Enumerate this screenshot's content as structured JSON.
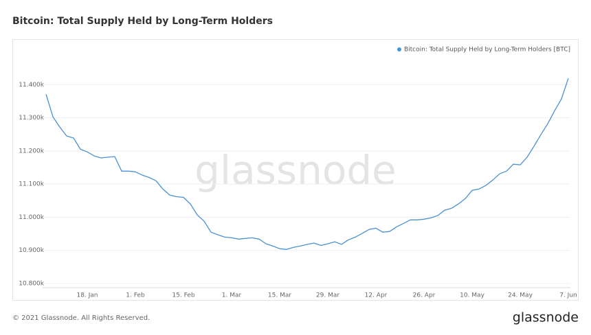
{
  "chart_data": {
    "type": "line",
    "title": "Bitcoin: Total Supply Held by Long-Term Holders",
    "watermark": "glassnode",
    "footer": "© 2021 Glassnode. All Rights Reserved.",
    "logo": "glassnode",
    "legend": "top-right",
    "grid": true,
    "categories": [
      null,
      null,
      null,
      null,
      null,
      null,
      "18. Jan",
      null,
      null,
      null,
      null,
      null,
      null,
      "1. Feb",
      null,
      null,
      null,
      null,
      null,
      null,
      "15. Feb",
      null,
      null,
      null,
      null,
      null,
      null,
      "1. Mar",
      null,
      null,
      null,
      null,
      null,
      null,
      "15. Mar",
      null,
      null,
      null,
      null,
      null,
      null,
      "29. Mar",
      null,
      null,
      null,
      null,
      null,
      null,
      "12. Apr",
      null,
      null,
      null,
      null,
      null,
      null,
      "26. Apr",
      null,
      null,
      null,
      null,
      null,
      null,
      "10. May",
      null,
      null,
      null,
      null,
      null,
      null,
      "24. May",
      null,
      null,
      null,
      null,
      null,
      null,
      "7. Jun"
    ],
    "series": [
      {
        "name": "Bitcoin: Total Supply Held by Long-Term Holders [BTC]",
        "color": "#4a90d2",
        "values": [
          11371000,
          11303000,
          11272000,
          11245000,
          11239000,
          11205000,
          11197000,
          11185000,
          11179000,
          11181000,
          11183000,
          11139000,
          11139000,
          11137000,
          11127000,
          11120000,
          11110000,
          11085000,
          11067000,
          11062000,
          11060000,
          11040000,
          11007000,
          10988000,
          10955000,
          10947000,
          10940000,
          10938000,
          10934000,
          10936000,
          10938000,
          10934000,
          10920000,
          10913000,
          10905000,
          10903000,
          10909000,
          10913000,
          10918000,
          10922000,
          10915000,
          10920000,
          10926000,
          10918000,
          10932000,
          10940000,
          10951000,
          10963000,
          10967000,
          10955000,
          10957000,
          10971000,
          10981000,
          10992000,
          10992000,
          10994000,
          10998000,
          11005000,
          11021000,
          11027000,
          11040000,
          11056000,
          11081000,
          11085000,
          11096000,
          11112000,
          11131000,
          11139000,
          11160000,
          11158000,
          11181000,
          11214000,
          11249000,
          11282000,
          11321000,
          11357000,
          11419000
        ]
      }
    ],
    "ylim": [
      10800000,
      11500000
    ],
    "yticks": [
      {
        "value": 10800000,
        "label": "10.800k"
      },
      {
        "value": 10900000,
        "label": "10.900k"
      },
      {
        "value": 11000000,
        "label": "11.000k"
      },
      {
        "value": 11100000,
        "label": "11.100k"
      },
      {
        "value": 11200000,
        "label": "11.200k"
      },
      {
        "value": 11300000,
        "label": "11.300k"
      },
      {
        "value": 11400000,
        "label": "11.400k"
      }
    ]
  }
}
